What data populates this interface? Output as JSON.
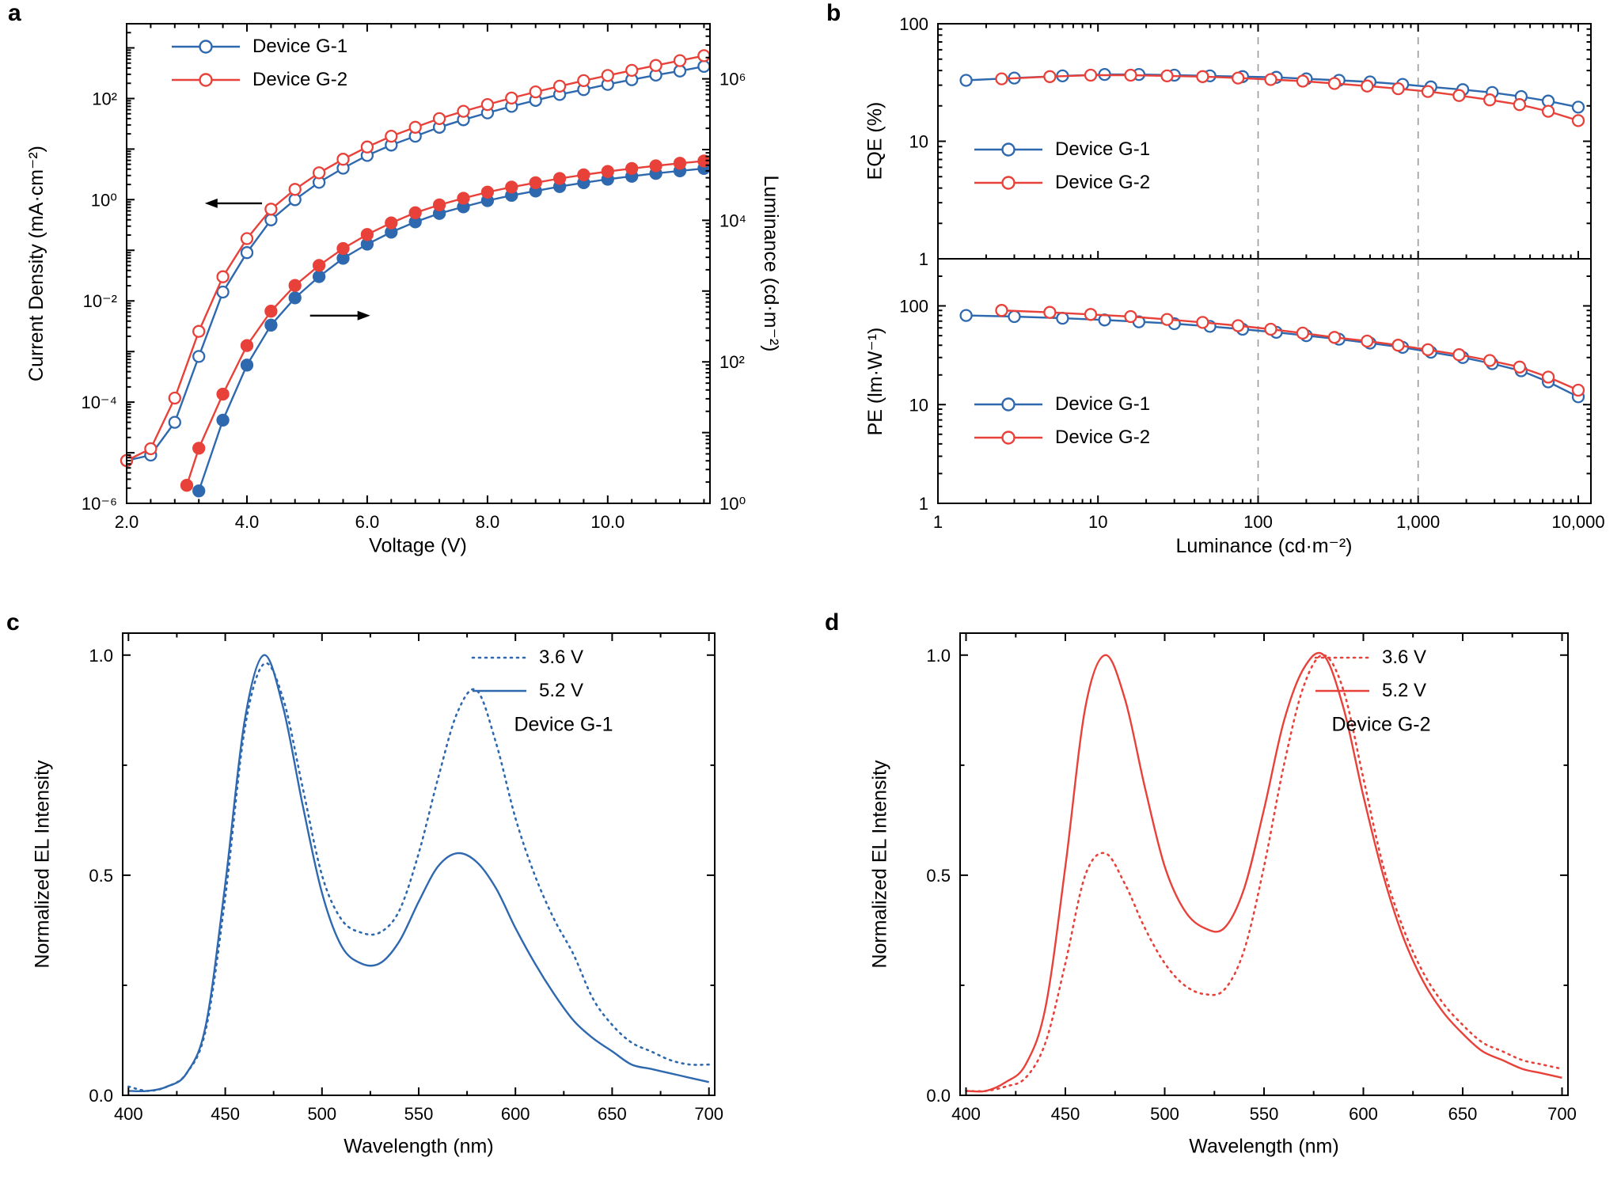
{
  "figure": {
    "colors": {
      "blue": "#2e68ae",
      "red": "#e8413a",
      "ref_line": "#9a9a9a"
    },
    "panels": {
      "a": {
        "label": "a",
        "legend": [
          {
            "label": "Device G-1",
            "color": "blue",
            "marker": "open-circle"
          },
          {
            "label": "Device G-2",
            "color": "red",
            "marker": "open-circle"
          }
        ]
      },
      "b": {
        "label": "b"
      },
      "c": {
        "label": "c",
        "device_label": "Device G-1"
      },
      "d": {
        "label": "d",
        "device_label": "Device G-2"
      }
    }
  },
  "chart_data": [
    {
      "id": "a",
      "panel": "a",
      "type": "line",
      "x_axis": {
        "label": "Voltage (V)",
        "scale": "linear",
        "min": 2.0,
        "max": 11.7,
        "major_ticks": [
          2.0,
          4.0,
          6.0,
          8.0,
          10.0
        ],
        "tick_labels": [
          "2.0",
          "4.0",
          "6.0",
          "8.0",
          "10.0"
        ],
        "minor_step": 0.4
      },
      "y_axis": {
        "label": "Current Density (mA·cm⁻²)",
        "scale": "log",
        "min": 1e-06,
        "max": 3000,
        "major_ticks": [
          1e-06,
          0.0001,
          0.01,
          1,
          100
        ],
        "tick_labels": [
          "10⁻⁶",
          "10⁻⁴",
          "10⁻²",
          "10⁰",
          "10²"
        ]
      },
      "y_axis_right": {
        "label": "Luminance (cd·m⁻²)",
        "scale": "log",
        "min": 1,
        "max": 6000000,
        "major_ticks": [
          1,
          100,
          10000,
          1000000
        ],
        "tick_labels": [
          "10⁰",
          "10²",
          "10⁴",
          "10⁶"
        ]
      },
      "series": [
        {
          "name": "Device G-1 current density",
          "color": "blue",
          "axis": "left",
          "marker": "open",
          "line": "solid",
          "x": [
            2.0,
            2.4,
            2.8,
            3.2,
            3.6,
            4.0,
            4.4,
            4.8,
            5.2,
            5.6,
            6.0,
            6.4,
            6.8,
            7.2,
            7.6,
            8.0,
            8.4,
            8.8,
            9.2,
            9.6,
            10.0,
            10.4,
            10.8,
            11.2,
            11.6
          ],
          "y": [
            7e-06,
            9e-06,
            4e-05,
            0.0008,
            0.015,
            0.09,
            0.4,
            1.0,
            2.2,
            4.2,
            7.5,
            12,
            18,
            27,
            38,
            52,
            70,
            92,
            120,
            150,
            190,
            235,
            290,
            350,
            430
          ]
        },
        {
          "name": "Device G-2 current density",
          "color": "red",
          "axis": "left",
          "marker": "open",
          "line": "solid",
          "x": [
            2.0,
            2.4,
            2.8,
            3.2,
            3.6,
            4.0,
            4.4,
            4.8,
            5.2,
            5.6,
            6.0,
            6.4,
            6.8,
            7.2,
            7.6,
            8.0,
            8.4,
            8.8,
            9.2,
            9.6,
            10.0,
            10.4,
            10.8,
            11.2,
            11.6
          ],
          "y": [
            7e-06,
            1.2e-05,
            0.00012,
            0.0025,
            0.03,
            0.17,
            0.65,
            1.6,
            3.4,
            6.3,
            11,
            18,
            27,
            40,
            56,
            76,
            102,
            135,
            175,
            225,
            285,
            360,
            450,
            560,
            700
          ]
        },
        {
          "name": "Device G-1 luminance",
          "color": "blue",
          "axis": "right",
          "marker": "filled",
          "line": "solid",
          "x": [
            3.2,
            3.6,
            4.0,
            4.4,
            4.8,
            5.2,
            5.6,
            6.0,
            6.4,
            6.8,
            7.2,
            7.6,
            8.0,
            8.4,
            8.8,
            9.2,
            9.6,
            10.0,
            10.4,
            10.8,
            11.2,
            11.6
          ],
          "y": [
            1.5,
            15,
            90,
            330,
            800,
            1600,
            2900,
            4600,
            6800,
            9500,
            12500,
            15500,
            19000,
            22500,
            26000,
            30000,
            34000,
            38000,
            42000,
            46000,
            50000,
            54000
          ]
        },
        {
          "name": "Device G-2 luminance",
          "color": "red",
          "axis": "right",
          "marker": "filled",
          "line": "solid",
          "x": [
            3.0,
            3.2,
            3.6,
            4.0,
            4.4,
            4.8,
            5.2,
            5.6,
            6.0,
            6.4,
            6.8,
            7.2,
            7.6,
            8.0,
            8.4,
            8.8,
            9.2,
            9.6,
            10.0,
            10.4,
            10.8,
            11.2,
            11.6
          ],
          "y": [
            1.8,
            6,
            35,
            170,
            520,
            1200,
            2300,
            4000,
            6300,
            9200,
            12800,
            16500,
            20500,
            25000,
            29500,
            34000,
            39000,
            44000,
            49000,
            54000,
            59000,
            64000,
            69000
          ]
        }
      ],
      "arrows": [
        {
          "x_tail": 4.25,
          "x_head": 3.3,
          "y": 0.85,
          "axis": "left"
        },
        {
          "x_tail": 5.05,
          "x_head": 6.05,
          "y": 450,
          "axis": "right"
        }
      ]
    },
    {
      "id": "b_top",
      "panel": "b",
      "type": "line",
      "x_axis": {
        "label": "Luminance (cd·m⁻²)",
        "scale": "log",
        "min": 1,
        "max": 12000,
        "major_ticks": [
          1,
          10,
          100,
          1000,
          10000
        ],
        "tick_labels": []
      },
      "y_axis": {
        "label": "EQE (%)",
        "scale": "log",
        "min": 1,
        "max": 100,
        "major_ticks": [
          1,
          10,
          100
        ],
        "tick_labels": [
          "1",
          "10",
          "100"
        ]
      },
      "ref_lines_x": [
        100,
        1000
      ],
      "series": [
        {
          "name": "Device G-1",
          "color": "blue",
          "axis": "left",
          "marker": "open",
          "line": "solid",
          "x": [
            1.5,
            3,
            6,
            11,
            18,
            30,
            50,
            80,
            130,
            200,
            320,
            500,
            800,
            1200,
            1900,
            2900,
            4400,
            6500,
            10000
          ],
          "y": [
            33,
            34.5,
            36,
            37,
            37,
            36.5,
            36,
            35.5,
            35,
            34,
            33,
            32,
            30.5,
            29,
            27.5,
            26,
            24,
            22,
            19.5
          ]
        },
        {
          "name": "Device G-2",
          "color": "red",
          "axis": "left",
          "marker": "open",
          "line": "solid",
          "x": [
            2.5,
            5,
            9,
            16,
            27,
            45,
            75,
            120,
            190,
            300,
            480,
            750,
            1150,
            1800,
            2800,
            4300,
            6500,
            10000
          ],
          "y": [
            34,
            35.5,
            36.5,
            36.5,
            36,
            35.5,
            34.5,
            33.5,
            32.5,
            31,
            29.5,
            28,
            26.5,
            24.5,
            22.5,
            20.5,
            18,
            15
          ]
        }
      ]
    },
    {
      "id": "b_bot",
      "panel": "b",
      "type": "line",
      "x_axis": {
        "label": "Luminance (cd·m⁻²)",
        "scale": "log",
        "min": 1,
        "max": 12000,
        "major_ticks": [
          1,
          10,
          100,
          1000,
          10000
        ],
        "tick_labels": [
          "1",
          "10",
          "100",
          "1,000",
          "10,000"
        ]
      },
      "y_axis": {
        "label": "PE (lm·W⁻¹)",
        "scale": "log",
        "min": 1,
        "max": 300,
        "major_ticks": [
          1,
          10,
          100
        ],
        "tick_labels": [
          "1",
          "10",
          "100"
        ]
      },
      "ref_lines_x": [
        100,
        1000
      ],
      "series": [
        {
          "name": "Device G-1",
          "color": "blue",
          "axis": "left",
          "marker": "open",
          "line": "solid",
          "x": [
            1.5,
            3,
            6,
            11,
            18,
            30,
            50,
            80,
            130,
            200,
            320,
            500,
            800,
            1200,
            1900,
            2900,
            4400,
            6500,
            10000
          ],
          "y": [
            80,
            78,
            75,
            72,
            69,
            66,
            62,
            58,
            54,
            50,
            46,
            42,
            38,
            34,
            30,
            26,
            22,
            17,
            12
          ]
        },
        {
          "name": "Device G-2",
          "color": "red",
          "axis": "left",
          "marker": "open",
          "line": "solid",
          "x": [
            2.5,
            5,
            9,
            16,
            27,
            45,
            75,
            120,
            190,
            300,
            480,
            750,
            1150,
            1800,
            2800,
            4300,
            6500,
            10000
          ],
          "y": [
            90,
            86,
            82,
            78,
            73,
            68,
            63,
            58,
            53,
            48,
            44,
            40,
            36,
            32,
            28,
            24,
            19,
            14
          ]
        }
      ]
    },
    {
      "id": "c",
      "panel": "c",
      "type": "line",
      "smooth": true,
      "x_axis": {
        "label": "Wavelength (nm)",
        "scale": "linear",
        "min": 397,
        "max": 703,
        "major_ticks": [
          400,
          450,
          500,
          550,
          600,
          650,
          700
        ],
        "tick_labels": [
          "400",
          "450",
          "500",
          "550",
          "600",
          "650",
          "700"
        ],
        "minor_step": 25
      },
      "y_axis": {
        "label": "Normalized EL Intensity",
        "scale": "linear",
        "min": 0,
        "max": 1.05,
        "major_ticks": [
          0,
          0.5,
          1.0
        ],
        "tick_labels": [
          "0.0",
          "0.5",
          "1.0"
        ],
        "minor_step": 0.25
      },
      "series": [
        {
          "name": "3.6 V",
          "color": "blue",
          "axis": "left",
          "marker": "none",
          "line": "dotted",
          "x": [
            400,
            410,
            420,
            430,
            440,
            450,
            460,
            470,
            480,
            490,
            500,
            510,
            520,
            530,
            540,
            550,
            560,
            570,
            580,
            590,
            600,
            610,
            620,
            630,
            640,
            650,
            660,
            670,
            680,
            690,
            700
          ],
          "y": [
            0.02,
            0.01,
            0.02,
            0.05,
            0.15,
            0.45,
            0.83,
            0.98,
            0.9,
            0.7,
            0.5,
            0.4,
            0.37,
            0.37,
            0.42,
            0.55,
            0.72,
            0.87,
            0.92,
            0.8,
            0.63,
            0.5,
            0.4,
            0.32,
            0.22,
            0.16,
            0.12,
            0.1,
            0.08,
            0.07,
            0.07
          ]
        },
        {
          "name": "5.2 V",
          "color": "blue",
          "axis": "left",
          "marker": "none",
          "line": "solid",
          "x": [
            400,
            410,
            420,
            430,
            440,
            450,
            460,
            470,
            480,
            490,
            500,
            510,
            520,
            530,
            540,
            550,
            560,
            570,
            580,
            590,
            600,
            610,
            620,
            630,
            640,
            650,
            660,
            670,
            680,
            690,
            700
          ],
          "y": [
            0.01,
            0.01,
            0.02,
            0.05,
            0.16,
            0.48,
            0.85,
            1.0,
            0.88,
            0.66,
            0.46,
            0.34,
            0.3,
            0.3,
            0.35,
            0.44,
            0.52,
            0.55,
            0.53,
            0.47,
            0.38,
            0.3,
            0.23,
            0.17,
            0.13,
            0.1,
            0.07,
            0.06,
            0.05,
            0.04,
            0.03
          ]
        }
      ]
    },
    {
      "id": "d",
      "panel": "d",
      "type": "line",
      "smooth": true,
      "x_axis": {
        "label": "Wavelength (nm)",
        "scale": "linear",
        "min": 397,
        "max": 703,
        "major_ticks": [
          400,
          450,
          500,
          550,
          600,
          650,
          700
        ],
        "tick_labels": [
          "400",
          "450",
          "500",
          "550",
          "600",
          "650",
          "700"
        ],
        "minor_step": 25
      },
      "y_axis": {
        "label": "Normalized EL Intensity",
        "scale": "linear",
        "min": 0,
        "max": 1.05,
        "major_ticks": [
          0,
          0.5,
          1.0
        ],
        "tick_labels": [
          "0.0",
          "0.5",
          "1.0"
        ],
        "minor_step": 0.25
      },
      "series": [
        {
          "name": "3.6 V",
          "color": "red",
          "axis": "left",
          "marker": "none",
          "line": "dotted",
          "x": [
            400,
            410,
            420,
            430,
            440,
            450,
            460,
            470,
            480,
            490,
            500,
            510,
            520,
            530,
            540,
            550,
            560,
            570,
            580,
            590,
            600,
            610,
            620,
            630,
            640,
            650,
            660,
            670,
            680,
            690,
            700
          ],
          "y": [
            0.01,
            0.01,
            0.02,
            0.04,
            0.12,
            0.3,
            0.5,
            0.55,
            0.48,
            0.38,
            0.3,
            0.25,
            0.23,
            0.24,
            0.33,
            0.52,
            0.75,
            0.93,
            1.0,
            0.92,
            0.72,
            0.52,
            0.38,
            0.28,
            0.21,
            0.16,
            0.12,
            0.1,
            0.08,
            0.07,
            0.06
          ]
        },
        {
          "name": "5.2 V",
          "color": "red",
          "axis": "left",
          "marker": "none",
          "line": "solid",
          "x": [
            400,
            410,
            420,
            430,
            440,
            450,
            460,
            470,
            480,
            490,
            500,
            510,
            520,
            530,
            540,
            550,
            560,
            570,
            580,
            590,
            600,
            610,
            620,
            630,
            640,
            650,
            660,
            670,
            680,
            690,
            700
          ],
          "y": [
            0.01,
            0.01,
            0.03,
            0.07,
            0.2,
            0.52,
            0.88,
            1.0,
            0.9,
            0.7,
            0.52,
            0.42,
            0.38,
            0.38,
            0.47,
            0.65,
            0.85,
            0.97,
            1.0,
            0.88,
            0.68,
            0.5,
            0.36,
            0.26,
            0.19,
            0.14,
            0.1,
            0.08,
            0.06,
            0.05,
            0.04
          ]
        }
      ]
    }
  ]
}
